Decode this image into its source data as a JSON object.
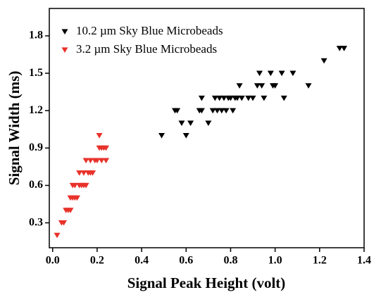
{
  "chart_data": {
    "type": "scatter",
    "x_label": "Signal Peak Height (volt)",
    "y_label": "Signal Width (ms)",
    "xlim": [
      -0.015,
      1.4
    ],
    "ylim": [
      0.1,
      2.02
    ],
    "xticks": [
      {
        "value": 0,
        "label": "0.0"
      },
      0.2,
      0.4,
      0.6,
      0.8,
      {
        "value": 1,
        "label": "1.0"
      },
      1.2,
      1.4
    ],
    "yticks": [
      0.3,
      0.6,
      0.9,
      1.2,
      1.5,
      1.8
    ],
    "legend": "upper-left",
    "series": [
      {
        "name": "10.2 µm Sky Blue Microbeads",
        "color": "#000000",
        "x": [
          0.49,
          0.55,
          0.56,
          0.58,
          0.6,
          0.62,
          0.66,
          0.67,
          0.67,
          0.7,
          0.72,
          0.73,
          0.74,
          0.75,
          0.76,
          0.77,
          0.78,
          0.79,
          0.8,
          0.81,
          0.82,
          0.83,
          0.84,
          0.85,
          0.88,
          0.9,
          0.92,
          0.93,
          0.94,
          0.95,
          0.98,
          0.99,
          1.0,
          1.03,
          1.04,
          1.08,
          1.15,
          1.22,
          1.29,
          1.31
        ],
        "values": [
          1.0,
          1.2,
          1.2,
          1.1,
          1.0,
          1.1,
          1.2,
          1.3,
          1.2,
          1.1,
          1.2,
          1.3,
          1.2,
          1.3,
          1.2,
          1.3,
          1.2,
          1.3,
          1.3,
          1.2,
          1.3,
          1.3,
          1.4,
          1.3,
          1.3,
          1.3,
          1.4,
          1.5,
          1.4,
          1.3,
          1.5,
          1.4,
          1.4,
          1.5,
          1.3,
          1.5,
          1.4,
          1.6,
          1.7,
          1.7
        ]
      },
      {
        "name": "3.2 µm Sky Blue Microbeads",
        "color": "#e8322a",
        "x": [
          0.02,
          0.04,
          0.05,
          0.06,
          0.07,
          0.08,
          0.08,
          0.09,
          0.09,
          0.1,
          0.1,
          0.11,
          0.12,
          0.12,
          0.13,
          0.14,
          0.14,
          0.15,
          0.15,
          0.16,
          0.17,
          0.17,
          0.18,
          0.19,
          0.2,
          0.21,
          0.21,
          0.22,
          0.22,
          0.23,
          0.24,
          0.24
        ],
        "values": [
          0.2,
          0.3,
          0.3,
          0.4,
          0.4,
          0.4,
          0.5,
          0.5,
          0.6,
          0.5,
          0.6,
          0.5,
          0.6,
          0.7,
          0.6,
          0.6,
          0.7,
          0.6,
          0.8,
          0.7,
          0.7,
          0.8,
          0.7,
          0.8,
          0.8,
          1.0,
          0.9,
          0.8,
          0.9,
          0.9,
          0.8,
          0.9
        ]
      }
    ]
  }
}
